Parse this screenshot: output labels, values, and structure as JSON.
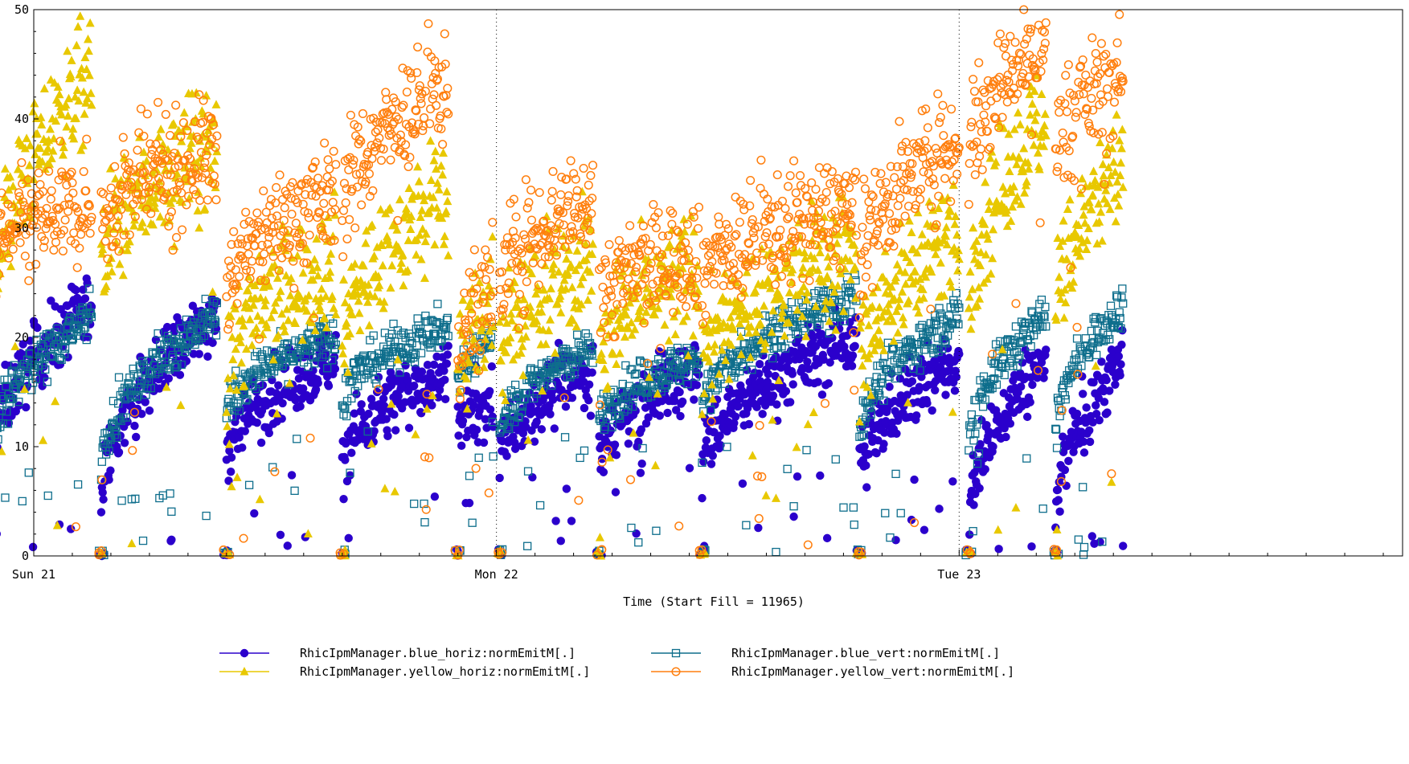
{
  "chart_data": {
    "type": "scatter",
    "title": "",
    "xlabel": "Time (Start Fill = 11965)",
    "ylabel": "",
    "ylim": [
      0,
      50
    ],
    "xlim": [
      "2016-02-21 00:00",
      "2016-02-23 23:00"
    ],
    "yticks": [
      0,
      10,
      20,
      30,
      40,
      50
    ],
    "xticks": [
      {
        "t": "2016-02-21 00:00",
        "label": "Sun 21"
      },
      {
        "t": "2016-02-22 00:00",
        "label": "Mon 22"
      },
      {
        "t": "2016-02-23 00:00",
        "label": "Tue 23"
      }
    ],
    "grid": "vertical dotted at day boundaries",
    "legend": "bottom",
    "fills": [
      {
        "start": "2016-02-20 21:40",
        "end": "2016-02-21 03:00",
        "y0": {
          "bh": 8,
          "bv": 9,
          "yh": 21,
          "yv": 27
        },
        "y1": {
          "bh": 23,
          "bv": 22,
          "yh": 44,
          "yv": 32
        }
      },
      {
        "start": "2016-02-21 03:30",
        "end": "2016-02-21 09:30",
        "y0": {
          "bh": 5,
          "bv": 8,
          "yh": 26,
          "yv": 30
        },
        "y1": {
          "bh": 22,
          "bv": 22,
          "yh": 38,
          "yv": 37
        }
      },
      {
        "start": "2016-02-21 10:00",
        "end": "2016-02-21 15:40",
        "y0": {
          "bh": 9,
          "bv": 13,
          "yh": 17,
          "yv": 24
        },
        "y1": {
          "bh": 18,
          "bv": 20,
          "yh": 27,
          "yv": 33
        }
      },
      {
        "start": "2016-02-21 16:00",
        "end": "2016-02-21 21:30",
        "y0": {
          "bh": 8,
          "bv": 14,
          "yh": 19,
          "yv": 31
        },
        "y1": {
          "bh": 17,
          "bv": 21,
          "yh": 33,
          "yv": 43
        }
      },
      {
        "start": "2016-02-21 22:00",
        "end": "2016-02-21 23:50",
        "y0": {
          "bh": 12,
          "bv": 15,
          "yh": 15,
          "yv": 17
        },
        "y1": {
          "bh": 14,
          "bv": 20,
          "yh": 23,
          "yv": 25
        }
      },
      {
        "start": "2016-02-22 00:10",
        "end": "2016-02-22 05:00",
        "y0": {
          "bh": 9,
          "bv": 11,
          "yh": 18,
          "yv": 24
        },
        "y1": {
          "bh": 17,
          "bv": 19,
          "yh": 27,
          "yv": 33
        }
      },
      {
        "start": "2016-02-22 05:20",
        "end": "2016-02-22 10:30",
        "y0": {
          "bh": 9,
          "bv": 12,
          "yh": 18,
          "yv": 23
        },
        "y1": {
          "bh": 17,
          "bv": 18,
          "yh": 26,
          "yv": 28
        }
      },
      {
        "start": "2016-02-22 10:40",
        "end": "2016-02-22 18:40",
        "y0": {
          "bh": 8,
          "bv": 13,
          "yh": 17,
          "yv": 25
        },
        "y1": {
          "bh": 20,
          "bv": 24,
          "yh": 28,
          "yv": 32
        }
      },
      {
        "start": "2016-02-22 18:50",
        "end": "2016-02-23 00:00",
        "y0": {
          "bh": 7,
          "bv": 11,
          "yh": 16,
          "yv": 26
        },
        "y1": {
          "bh": 18,
          "bv": 22,
          "yh": 30,
          "yv": 38
        }
      },
      {
        "start": "2016-02-23 00:30",
        "end": "2016-02-23 04:30",
        "y0": {
          "bh": 3,
          "bv": 10,
          "yh": 23,
          "yv": 37
        },
        "y1": {
          "bh": 18,
          "bv": 22,
          "yh": 40,
          "yv": 46
        }
      },
      {
        "start": "2016-02-23 05:00",
        "end": "2016-02-23 08:30",
        "y0": {
          "bh": 3,
          "bv": 11,
          "yh": 21,
          "yv": 37
        },
        "y1": {
          "bh": 18,
          "bv": 23,
          "yh": 36,
          "yv": 44
        }
      }
    ],
    "series": [
      {
        "key": "bh",
        "name": "RhicIpmManager.blue_horiz:normEmitM[.]",
        "color": "#2b00cc",
        "marker": "filled-circle"
      },
      {
        "key": "bv",
        "name": "RhicIpmManager.blue_vert:normEmitM[.]",
        "color": "#0e6e8c",
        "marker": "open-square"
      },
      {
        "key": "yh",
        "name": "RhicIpmManager.yellow_horiz:normEmitM[.]",
        "color": "#e8c800",
        "marker": "filled-triangle"
      },
      {
        "key": "yv",
        "name": "RhicIpmManager.yellow_vert:normEmitM[.]",
        "color": "#ff7f0e",
        "marker": "open-circle"
      }
    ]
  }
}
